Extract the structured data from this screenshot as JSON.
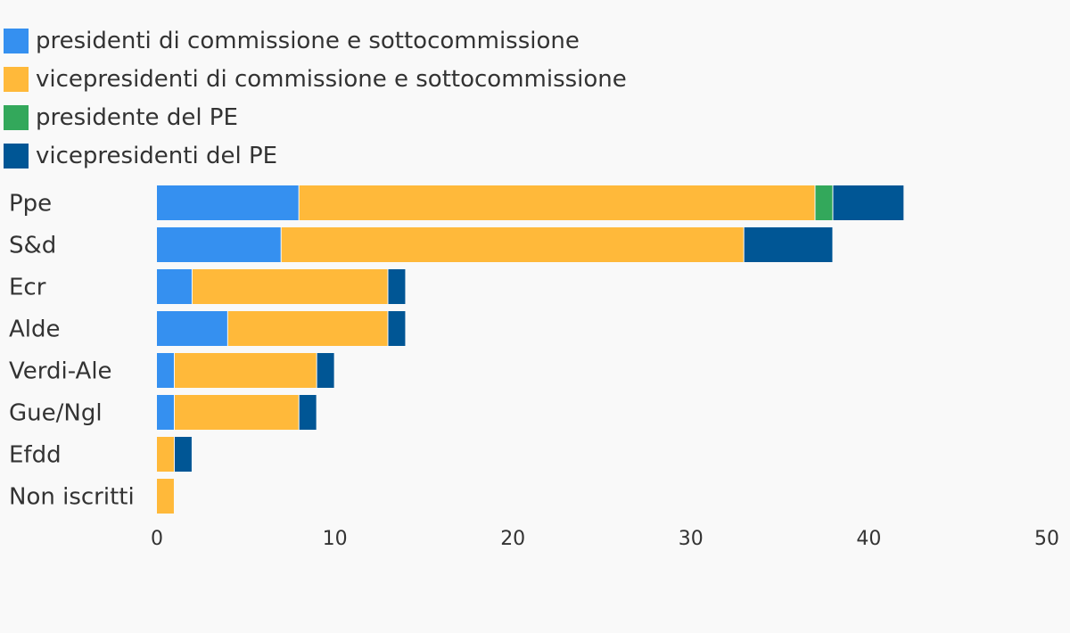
{
  "chart_data": {
    "type": "bar",
    "orientation": "horizontal",
    "stacked": true,
    "categories": [
      "Ppe",
      "S&d",
      "Ecr",
      "Alde",
      "Verdi-Ale",
      "Gue/Ngl",
      "Efdd",
      "Non iscritti"
    ],
    "series": [
      {
        "name": "presidenti di commissione e sottocommissione",
        "color": "#3590f0",
        "values": [
          8,
          7,
          2,
          4,
          1,
          1,
          0,
          0
        ]
      },
      {
        "name": "vicepresidenti di commissione e sottocommissione",
        "color": "#ffb93a",
        "values": [
          29,
          26,
          11,
          9,
          8,
          7,
          1,
          1
        ]
      },
      {
        "name": "presidente del PE",
        "color": "#33a85b",
        "values": [
          1,
          0,
          0,
          0,
          0,
          0,
          0,
          0
        ]
      },
      {
        "name": "vicepresidenti del PE",
        "color": "#005695",
        "values": [
          4,
          5,
          1,
          1,
          1,
          1,
          1,
          0
        ]
      }
    ],
    "xlim": [
      0,
      50
    ],
    "xticks": [
      "0",
      "10",
      "20",
      "30",
      "40",
      "50"
    ],
    "title": "",
    "xlabel": "",
    "ylabel": "",
    "grid": false,
    "legend_position": "top-left"
  }
}
